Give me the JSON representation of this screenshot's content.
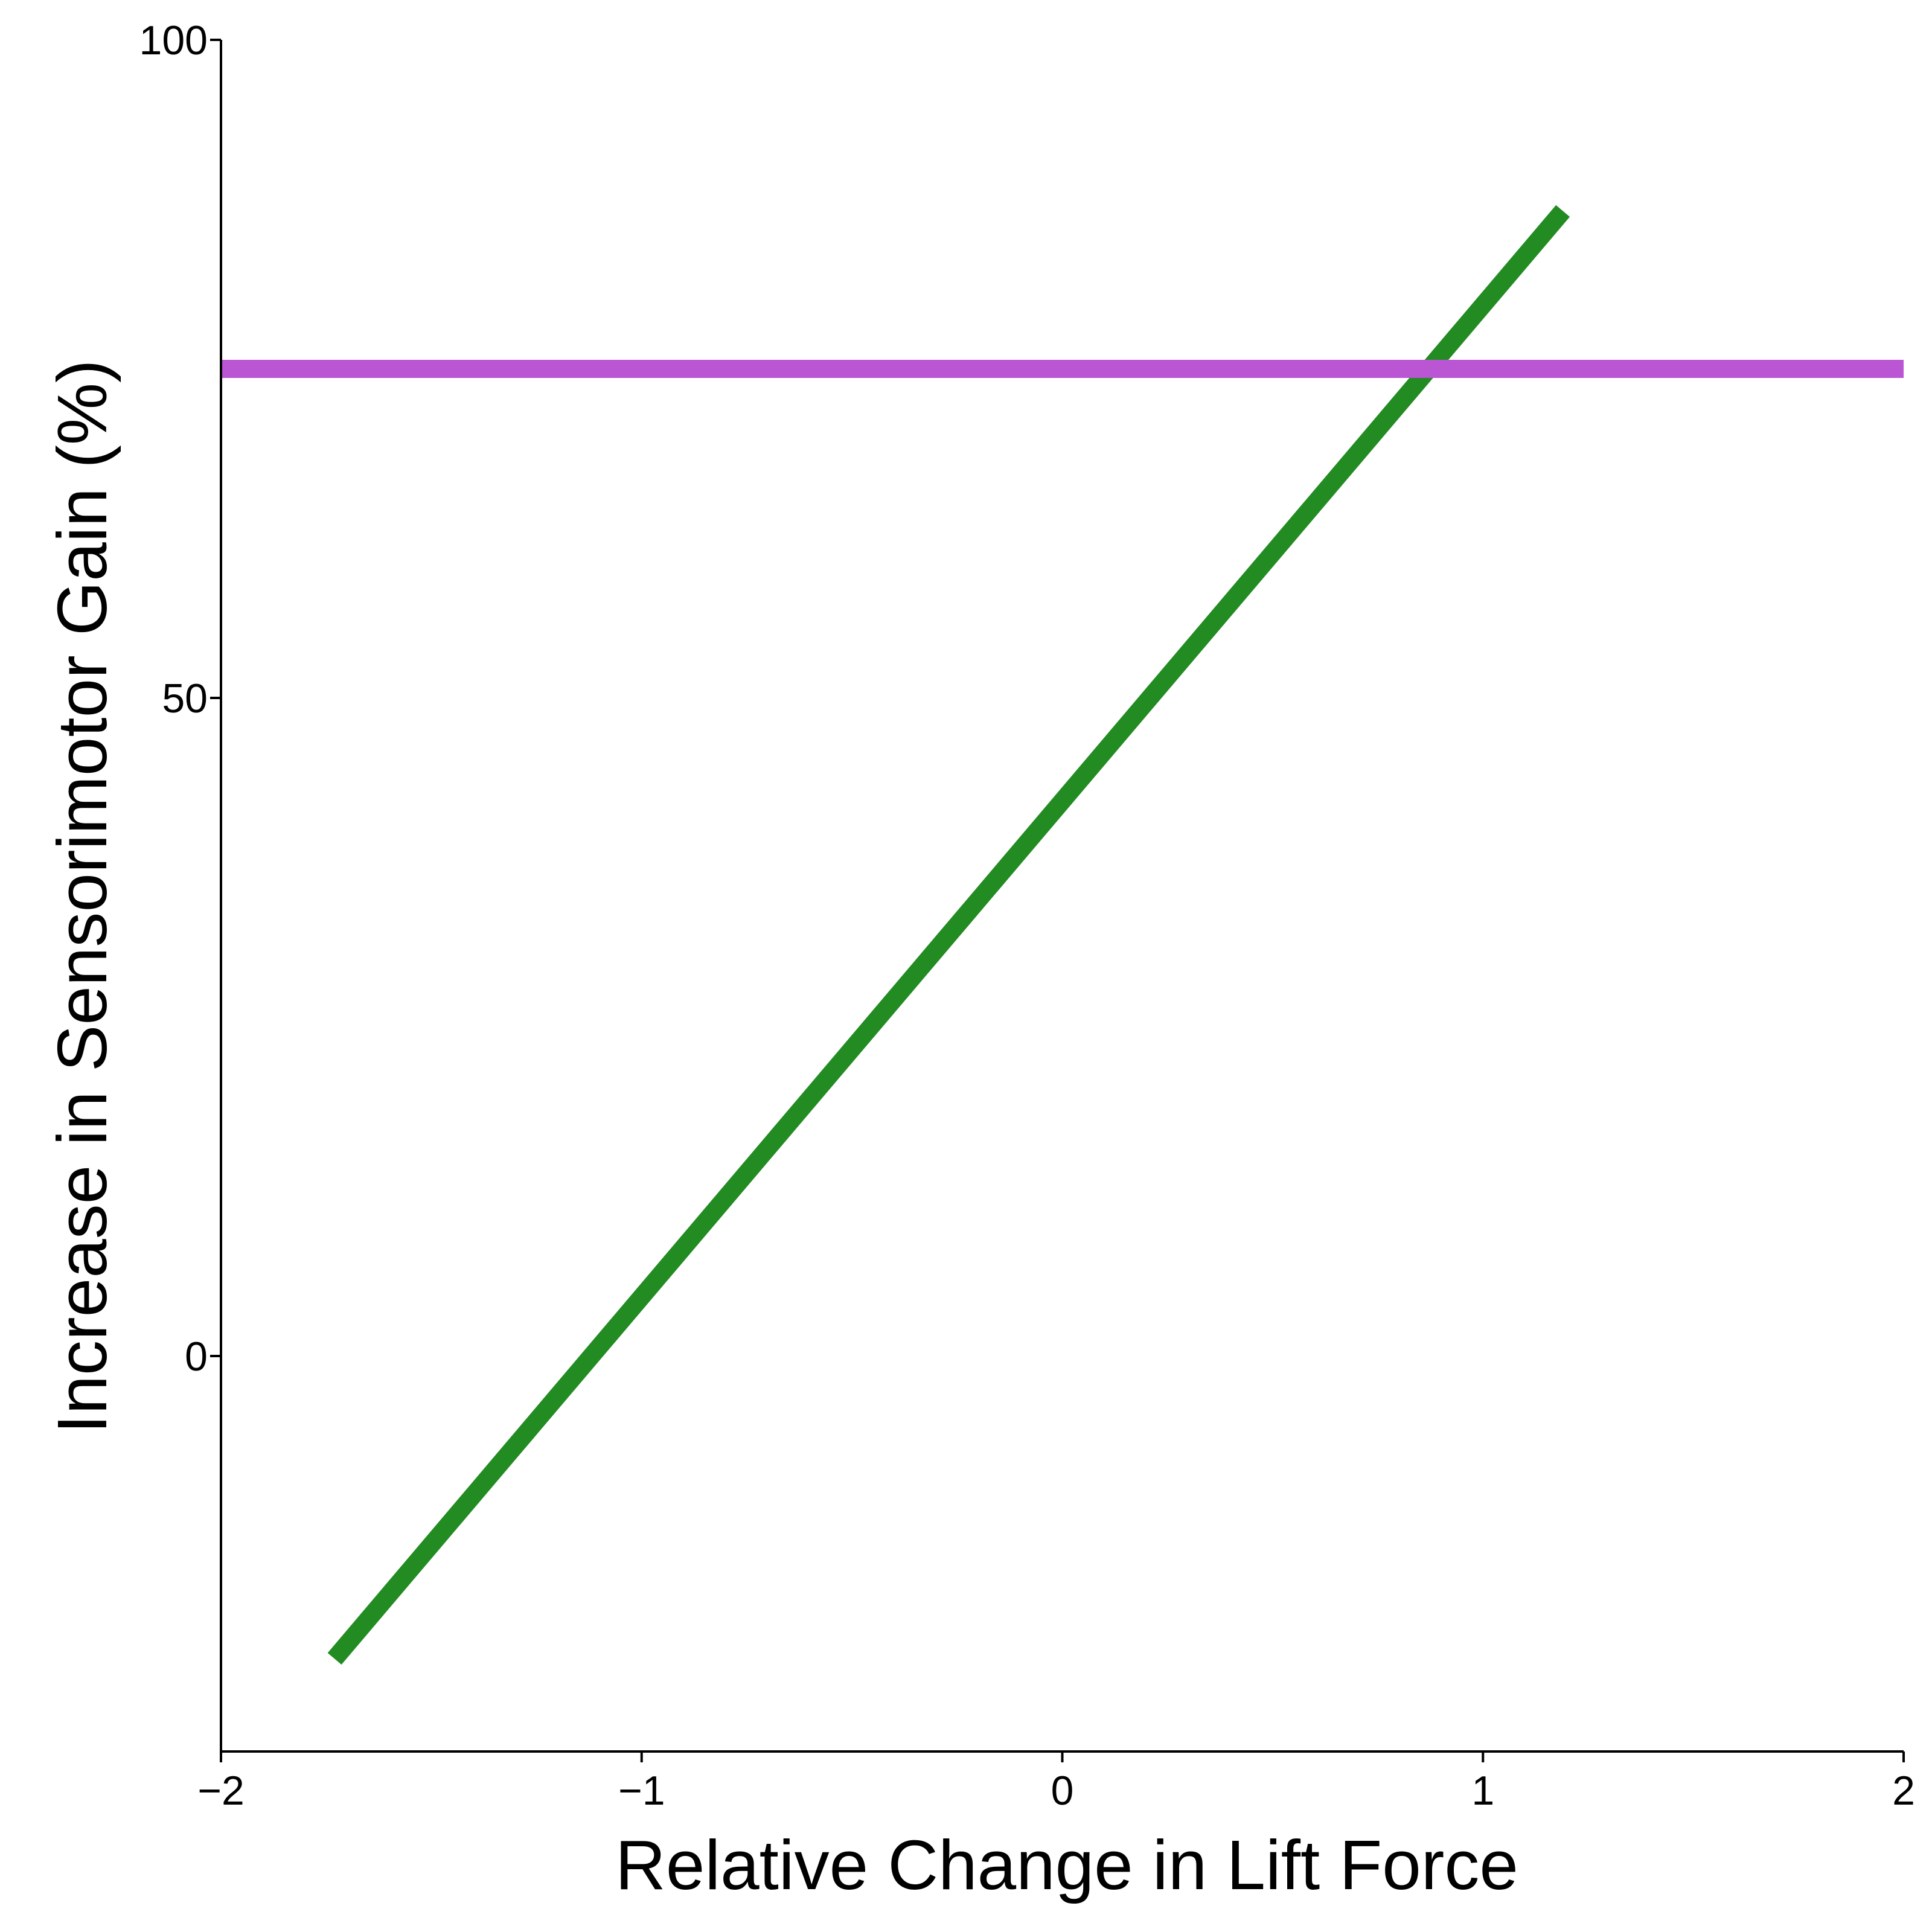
{
  "chart_data": {
    "type": "line",
    "title": "",
    "xlabel": "Relative Change in Lift Force",
    "ylabel": "Increase in Sensorimotor Gain (%)",
    "xlim": [
      -2,
      2
    ],
    "ylim": [
      -30,
      100
    ],
    "x_ticks": [
      -2,
      -1,
      0,
      1,
      2
    ],
    "x_tick_labels": [
      "−2",
      "−1",
      "0",
      "1",
      "2"
    ],
    "y_ticks": [
      0,
      50,
      100
    ],
    "y_tick_labels": [
      "0",
      "50",
      "100"
    ],
    "grid": false,
    "legend": "none",
    "series": [
      {
        "color": "#228B22",
        "x": [
          -1.73,
          1.19
        ],
        "y": [
          -23,
          87
        ]
      },
      {
        "color": "#BA55D3",
        "x": [
          -2,
          2
        ],
        "y": [
          75,
          75
        ]
      }
    ]
  }
}
